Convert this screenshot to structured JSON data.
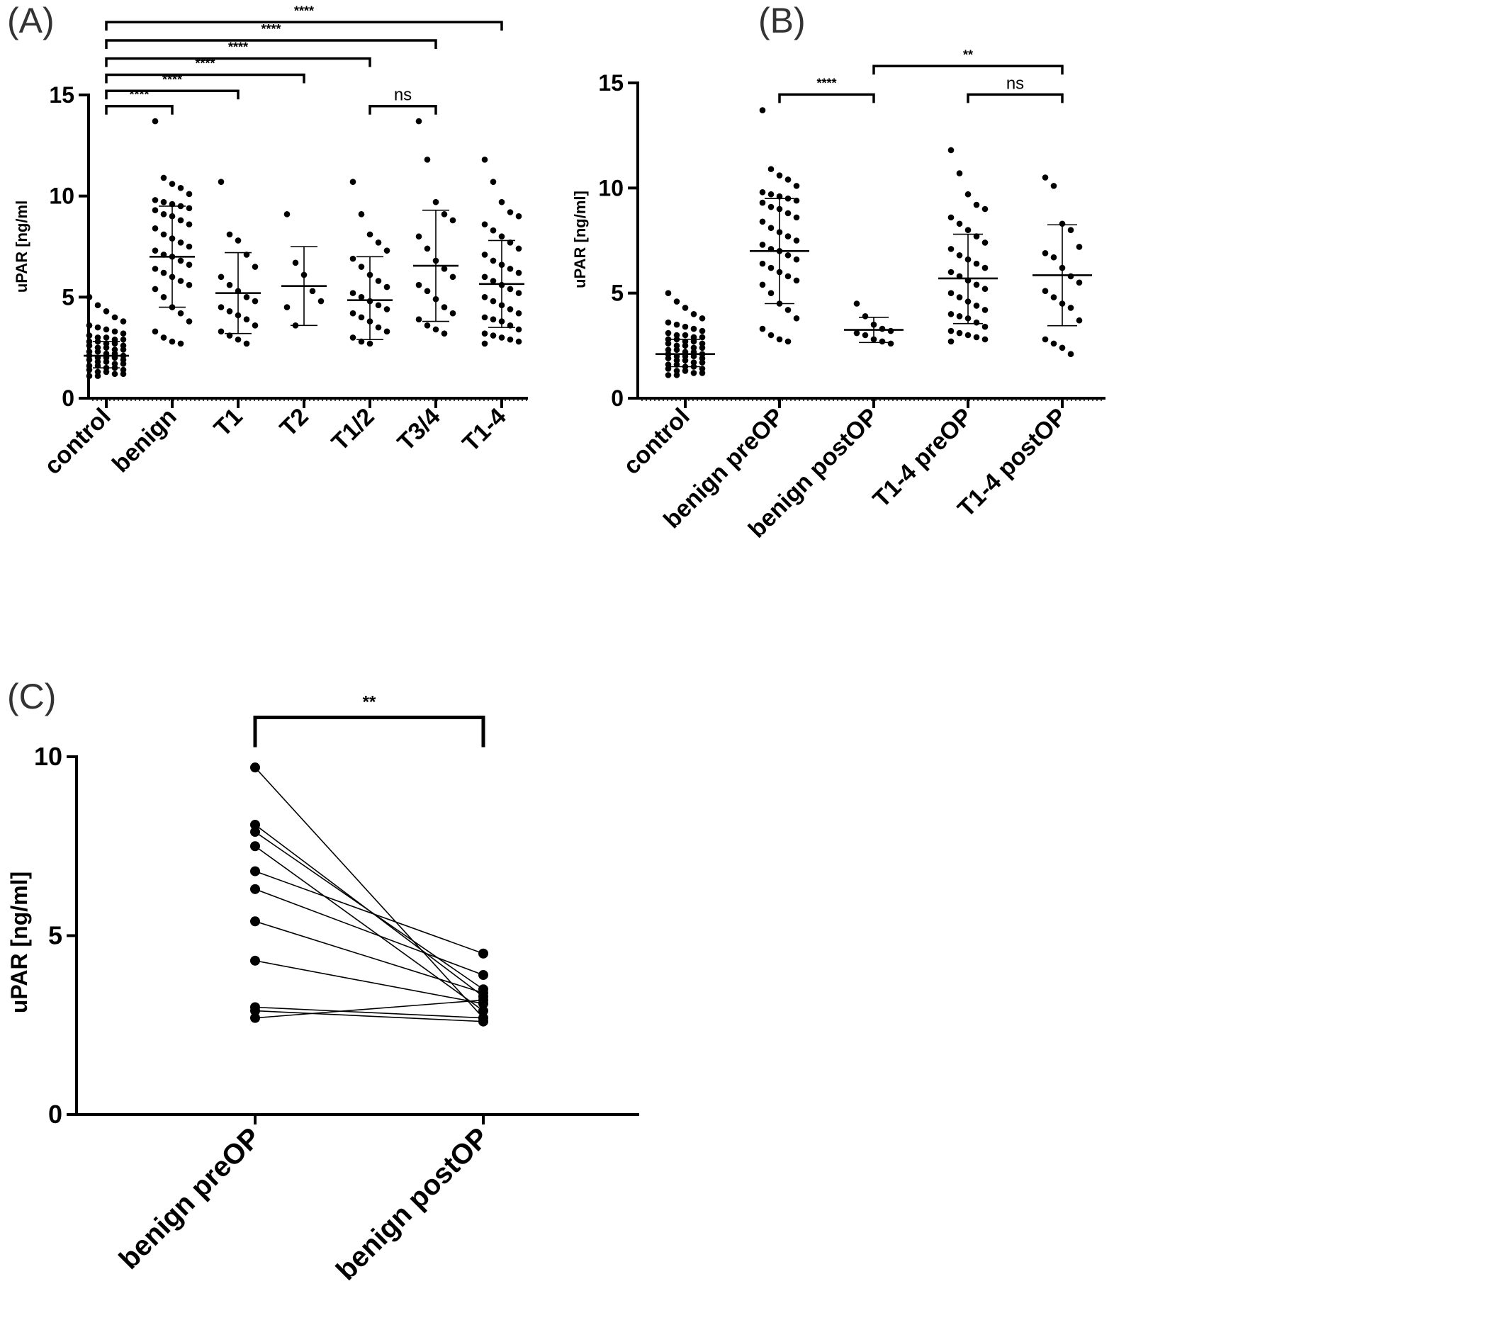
{
  "panel_labels": {
    "A": "(A)",
    "B": "(B)",
    "C": "(C)"
  },
  "chart_data": [
    {
      "panel": "A",
      "type": "scatter",
      "ylabel": "uPAR [ng/ml",
      "ylim": [
        0,
        15
      ],
      "yticks": [
        0,
        5,
        10,
        15
      ],
      "categories": [
        "control",
        "benign",
        "T1",
        "T2",
        "T1/2",
        "T3/4",
        "T1-4"
      ],
      "summary": [
        {
          "mean": 2.1,
          "sd_low": 1.5,
          "sd_high": 2.8
        },
        {
          "mean": 7.0,
          "sd_low": 4.5,
          "sd_high": 9.5
        },
        {
          "mean": 5.2,
          "sd_low": 3.2,
          "sd_high": 7.2
        },
        {
          "mean": 5.55,
          "sd_low": 3.6,
          "sd_high": 7.5
        },
        {
          "mean": 4.85,
          "sd_low": 2.9,
          "sd_high": 7.0
        },
        {
          "mean": 6.55,
          "sd_low": 3.8,
          "sd_high": 9.3
        },
        {
          "mean": 5.65,
          "sd_low": 3.5,
          "sd_high": 7.8
        }
      ],
      "points": [
        [
          5.0,
          4.6,
          4.3,
          4.0,
          3.8,
          3.6,
          3.5,
          3.4,
          3.3,
          3.2,
          3.1,
          3.0,
          3.0,
          2.9,
          2.9,
          2.8,
          2.8,
          2.7,
          2.7,
          2.6,
          2.6,
          2.5,
          2.5,
          2.4,
          2.4,
          2.3,
          2.3,
          2.2,
          2.2,
          2.1,
          2.1,
          2.0,
          2.0,
          2.0,
          1.9,
          1.9,
          1.8,
          1.8,
          1.7,
          1.7,
          1.6,
          1.6,
          1.5,
          1.5,
          1.4,
          1.4,
          1.3,
          1.3,
          1.2,
          1.2,
          1.1,
          1.1
        ],
        [
          13.7,
          10.9,
          10.6,
          10.4,
          10.1,
          9.8,
          9.7,
          9.6,
          9.5,
          9.4,
          9.3,
          9.1,
          9.0,
          8.8,
          8.6,
          8.4,
          8.1,
          7.9,
          7.7,
          7.5,
          7.3,
          7.1,
          7.0,
          6.8,
          6.6,
          6.4,
          6.2,
          6.0,
          5.8,
          5.6,
          5.4,
          5.0,
          4.5,
          4.2,
          3.8,
          3.3,
          3.0,
          2.8,
          2.7
        ],
        [
          10.7,
          8.1,
          7.8,
          7.1,
          6.5,
          6.0,
          5.6,
          5.3,
          5.0,
          4.8,
          4.5,
          4.3,
          4.1,
          3.9,
          3.6,
          3.3,
          3.1,
          2.9,
          2.7
        ],
        [
          9.1,
          6.7,
          6.1,
          5.3,
          4.8,
          4.5,
          3.6
        ],
        [
          10.7,
          9.1,
          8.1,
          7.7,
          7.3,
          6.9,
          6.5,
          6.1,
          5.8,
          5.5,
          5.2,
          5.0,
          4.8,
          4.6,
          4.4,
          4.2,
          4.0,
          3.8,
          3.5,
          3.3,
          3.0,
          2.8,
          2.7
        ],
        [
          13.7,
          11.8,
          9.7,
          9.1,
          8.8,
          8.0,
          7.4,
          6.8,
          6.4,
          6.0,
          5.6,
          5.3,
          4.9,
          4.5,
          4.2,
          3.9,
          3.6,
          3.4,
          3.2
        ],
        [
          11.8,
          10.7,
          9.7,
          9.2,
          9.0,
          8.6,
          8.3,
          8.0,
          7.7,
          7.4,
          7.1,
          6.8,
          6.6,
          6.4,
          6.2,
          6.0,
          5.8,
          5.6,
          5.4,
          5.2,
          5.0,
          4.8,
          4.6,
          4.4,
          4.2,
          4.0,
          3.9,
          3.8,
          3.6,
          3.4,
          3.2,
          3.1,
          3.0,
          2.9,
          2.8,
          2.7
        ]
      ],
      "comparisons": [
        {
          "from": 0,
          "to": 1,
          "y": 14.45,
          "label": "****"
        },
        {
          "from": 0,
          "to": 2,
          "y": 15.2,
          "label": "****"
        },
        {
          "from": 0,
          "to": 3,
          "y": 16.0,
          "label": "****"
        },
        {
          "from": 0,
          "to": 4,
          "y": 16.8,
          "label": "****"
        },
        {
          "from": 0,
          "to": 5,
          "y": 17.7,
          "label": "****"
        },
        {
          "from": 0,
          "to": 6,
          "y": 18.6,
          "label": "****"
        },
        {
          "from": 4,
          "to": 5,
          "y": 14.45,
          "label": "ns"
        }
      ]
    },
    {
      "panel": "B",
      "type": "scatter",
      "ylabel": "uPAR [ng/ml]",
      "ylim": [
        0,
        15
      ],
      "yticks": [
        0,
        5,
        10,
        15
      ],
      "categories": [
        "control",
        "benign preOP",
        "benign postOP",
        "T1-4 preOP",
        "T1-4 postOP"
      ],
      "summary": [
        {
          "mean": 2.1,
          "sd_low": 1.5,
          "sd_high": 2.8
        },
        {
          "mean": 7.0,
          "sd_low": 4.5,
          "sd_high": 9.5
        },
        {
          "mean": 3.25,
          "sd_low": 2.65,
          "sd_high": 3.85
        },
        {
          "mean": 5.7,
          "sd_low": 3.55,
          "sd_high": 7.8
        },
        {
          "mean": 5.85,
          "sd_low": 3.45,
          "sd_high": 8.25
        }
      ],
      "points": [
        [
          5.0,
          4.6,
          4.3,
          4.0,
          3.8,
          3.6,
          3.5,
          3.4,
          3.3,
          3.2,
          3.1,
          3.0,
          3.0,
          2.9,
          2.9,
          2.8,
          2.8,
          2.7,
          2.7,
          2.6,
          2.6,
          2.5,
          2.5,
          2.4,
          2.4,
          2.3,
          2.3,
          2.2,
          2.2,
          2.1,
          2.1,
          2.0,
          2.0,
          2.0,
          1.9,
          1.9,
          1.8,
          1.8,
          1.7,
          1.7,
          1.6,
          1.6,
          1.5,
          1.5,
          1.4,
          1.4,
          1.3,
          1.3,
          1.2,
          1.2,
          1.1,
          1.1
        ],
        [
          13.7,
          10.9,
          10.6,
          10.4,
          10.1,
          9.8,
          9.7,
          9.6,
          9.5,
          9.4,
          9.3,
          9.1,
          9.0,
          8.8,
          8.6,
          8.4,
          8.1,
          7.9,
          7.7,
          7.5,
          7.3,
          7.1,
          7.0,
          6.8,
          6.6,
          6.4,
          6.2,
          6.0,
          5.8,
          5.6,
          5.4,
          5.0,
          4.5,
          4.2,
          3.8,
          3.3,
          3.0,
          2.8,
          2.7
        ],
        [
          4.5,
          3.9,
          3.5,
          3.3,
          3.2,
          3.1,
          3.0,
          2.8,
          2.7,
          2.6
        ],
        [
          11.8,
          10.7,
          9.7,
          9.2,
          9.0,
          8.6,
          8.3,
          8.0,
          7.7,
          7.4,
          7.1,
          6.8,
          6.6,
          6.4,
          6.2,
          6.0,
          5.8,
          5.6,
          5.4,
          5.2,
          5.0,
          4.8,
          4.6,
          4.4,
          4.2,
          4.0,
          3.9,
          3.8,
          3.6,
          3.4,
          3.2,
          3.1,
          3.0,
          2.9,
          2.8,
          2.7
        ],
        [
          10.5,
          10.1,
          8.3,
          8.0,
          7.2,
          6.9,
          6.7,
          6.2,
          5.8,
          5.5,
          5.1,
          4.8,
          4.5,
          4.3,
          3.7,
          2.8,
          2.6,
          2.4,
          2.1
        ]
      ],
      "comparisons": [
        {
          "from": 1,
          "to": 2,
          "y": 14.45,
          "label": "****"
        },
        {
          "from": 2,
          "to": 4,
          "y": 15.8,
          "label": "**"
        },
        {
          "from": 3,
          "to": 4,
          "y": 14.45,
          "label": "ns"
        }
      ]
    },
    {
      "panel": "C",
      "type": "line",
      "ylabel": "uPAR [ng/ml]",
      "ylim": [
        0,
        10
      ],
      "yticks": [
        0,
        5,
        10
      ],
      "categories": [
        "benign preOP",
        "benign postOP"
      ],
      "pairs": [
        [
          9.7,
          2.7
        ],
        [
          8.1,
          3.3
        ],
        [
          7.9,
          3.5
        ],
        [
          7.5,
          2.9
        ],
        [
          6.8,
          4.5
        ],
        [
          6.3,
          3.9
        ],
        [
          5.4,
          3.4
        ],
        [
          4.3,
          3.1
        ],
        [
          3.0,
          2.7
        ],
        [
          2.9,
          2.6
        ],
        [
          2.7,
          3.2
        ]
      ],
      "comparisons": [
        {
          "from": 0,
          "to": 1,
          "y": 11.1,
          "label": "**"
        }
      ]
    }
  ]
}
